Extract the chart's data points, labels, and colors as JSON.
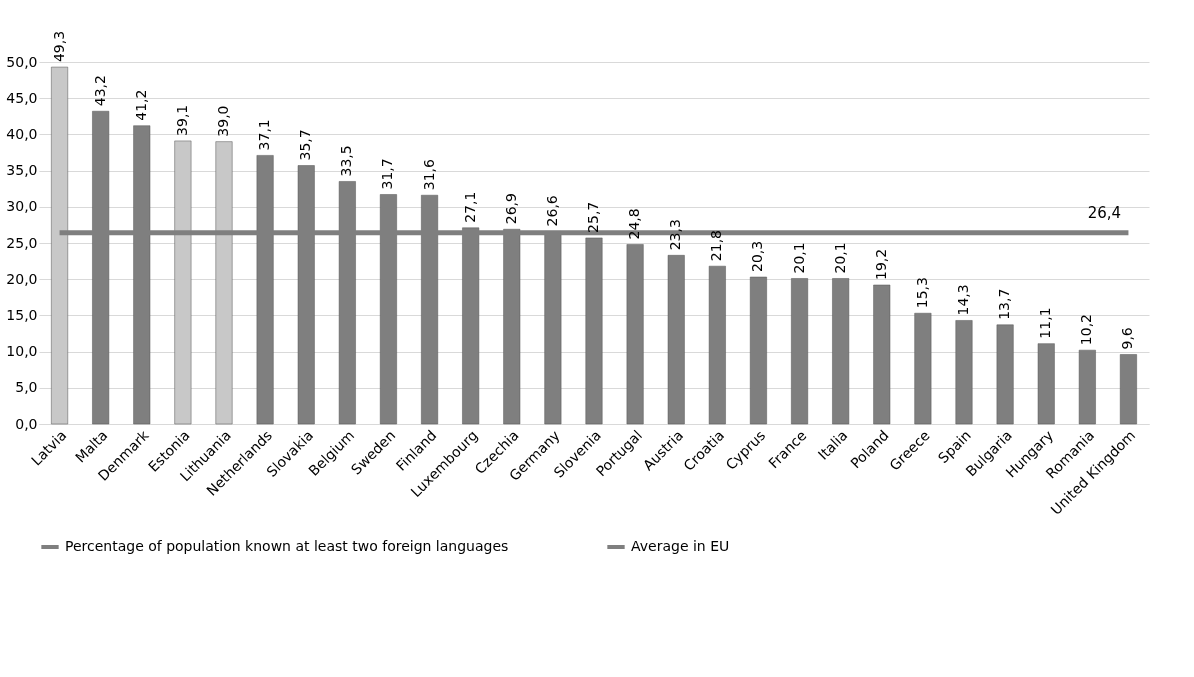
{
  "chart_data": {
    "type": "bar",
    "categories": [
      "Latvia",
      "Malta",
      "Denmark",
      "Estonia",
      "Lithuania",
      "Netherlands",
      "Slovakia",
      "Belgium",
      "Sweden",
      "Finland",
      "Luxembourg",
      "Czechia",
      "Germany",
      "Slovenia",
      "Portugal",
      "Austria",
      "Croatia",
      "Cyprus",
      "France",
      "Italia",
      "Poland",
      "Greece",
      "Spain",
      "Bulgaria",
      "Hungary",
      "Romania",
      "United Kingdom"
    ],
    "series": [
      {
        "name": "Percentage of population known at least two foreign languages",
        "color": "#7f7f7f",
        "colors": [
          "#c8c8c8",
          "#7f7f7f",
          "#7f7f7f",
          "#c8c8c8",
          "#c8c8c8",
          "#7f7f7f",
          "#7f7f7f",
          "#7f7f7f",
          "#7f7f7f",
          "#7f7f7f",
          "#7f7f7f",
          "#7f7f7f",
          "#7f7f7f",
          "#7f7f7f",
          "#7f7f7f",
          "#7f7f7f",
          "#7f7f7f",
          "#7f7f7f",
          "#7f7f7f",
          "#7f7f7f",
          "#7f7f7f",
          "#7f7f7f",
          "#7f7f7f",
          "#7f7f7f",
          "#7f7f7f",
          "#7f7f7f",
          "#7f7f7f"
        ],
        "values": [
          49.3,
          43.2,
          41.2,
          39.1,
          39.0,
          37.1,
          35.7,
          33.5,
          31.7,
          31.6,
          27.1,
          26.9,
          26.6,
          25.7,
          24.8,
          23.3,
          21.8,
          20.3,
          20.1,
          20.1,
          19.2,
          15.3,
          14.3,
          13.7,
          11.1,
          10.2,
          9.6
        ],
        "value_labels": [
          "49,3",
          "43,2",
          "41,2",
          "39,1",
          "39,0",
          "37,1",
          "35,7",
          "33,5",
          "31,7",
          "31,6",
          "27,1",
          "26,9",
          "26,6",
          "25,7",
          "24,8",
          "23,3",
          "21,8",
          "20,3",
          "20,1",
          "20,1",
          "19,2",
          "15,3",
          "14,3",
          "13,7",
          "11,1",
          "10,2",
          "9,6"
        ]
      },
      {
        "name": "Average in EU",
        "type": "line",
        "color": "#7f7f7f",
        "values": [
          26.4,
          26.4,
          26.4,
          26.4,
          26.4,
          26.4,
          26.4,
          26.4,
          26.4,
          26.4,
          26.4,
          26.4,
          26.4,
          26.4,
          26.4,
          26.4,
          26.4,
          26.4,
          26.4,
          26.4,
          26.4,
          26.4,
          26.4,
          26.4,
          26.4,
          26.4,
          26.4
        ]
      }
    ],
    "annotations": [
      {
        "text": "26,4",
        "x": "United Kingdom",
        "y": 26.4
      }
    ],
    "ylim": [
      0,
      50
    ],
    "yticks": [
      {
        "value": 0,
        "label": "0,0"
      },
      {
        "value": 5,
        "label": "5,0"
      },
      {
        "value": 10,
        "label": "10,0"
      },
      {
        "value": 15,
        "label": "15,0"
      },
      {
        "value": 20,
        "label": "20,0"
      },
      {
        "value": 25,
        "label": "25,0"
      },
      {
        "value": 30,
        "label": "30,0"
      },
      {
        "value": 35,
        "label": "35,0"
      },
      {
        "value": 40,
        "label": "40,0"
      },
      {
        "value": 45,
        "label": "45,0"
      },
      {
        "value": 50,
        "label": "50,0"
      }
    ],
    "grid": "y",
    "legend": "bottom"
  }
}
